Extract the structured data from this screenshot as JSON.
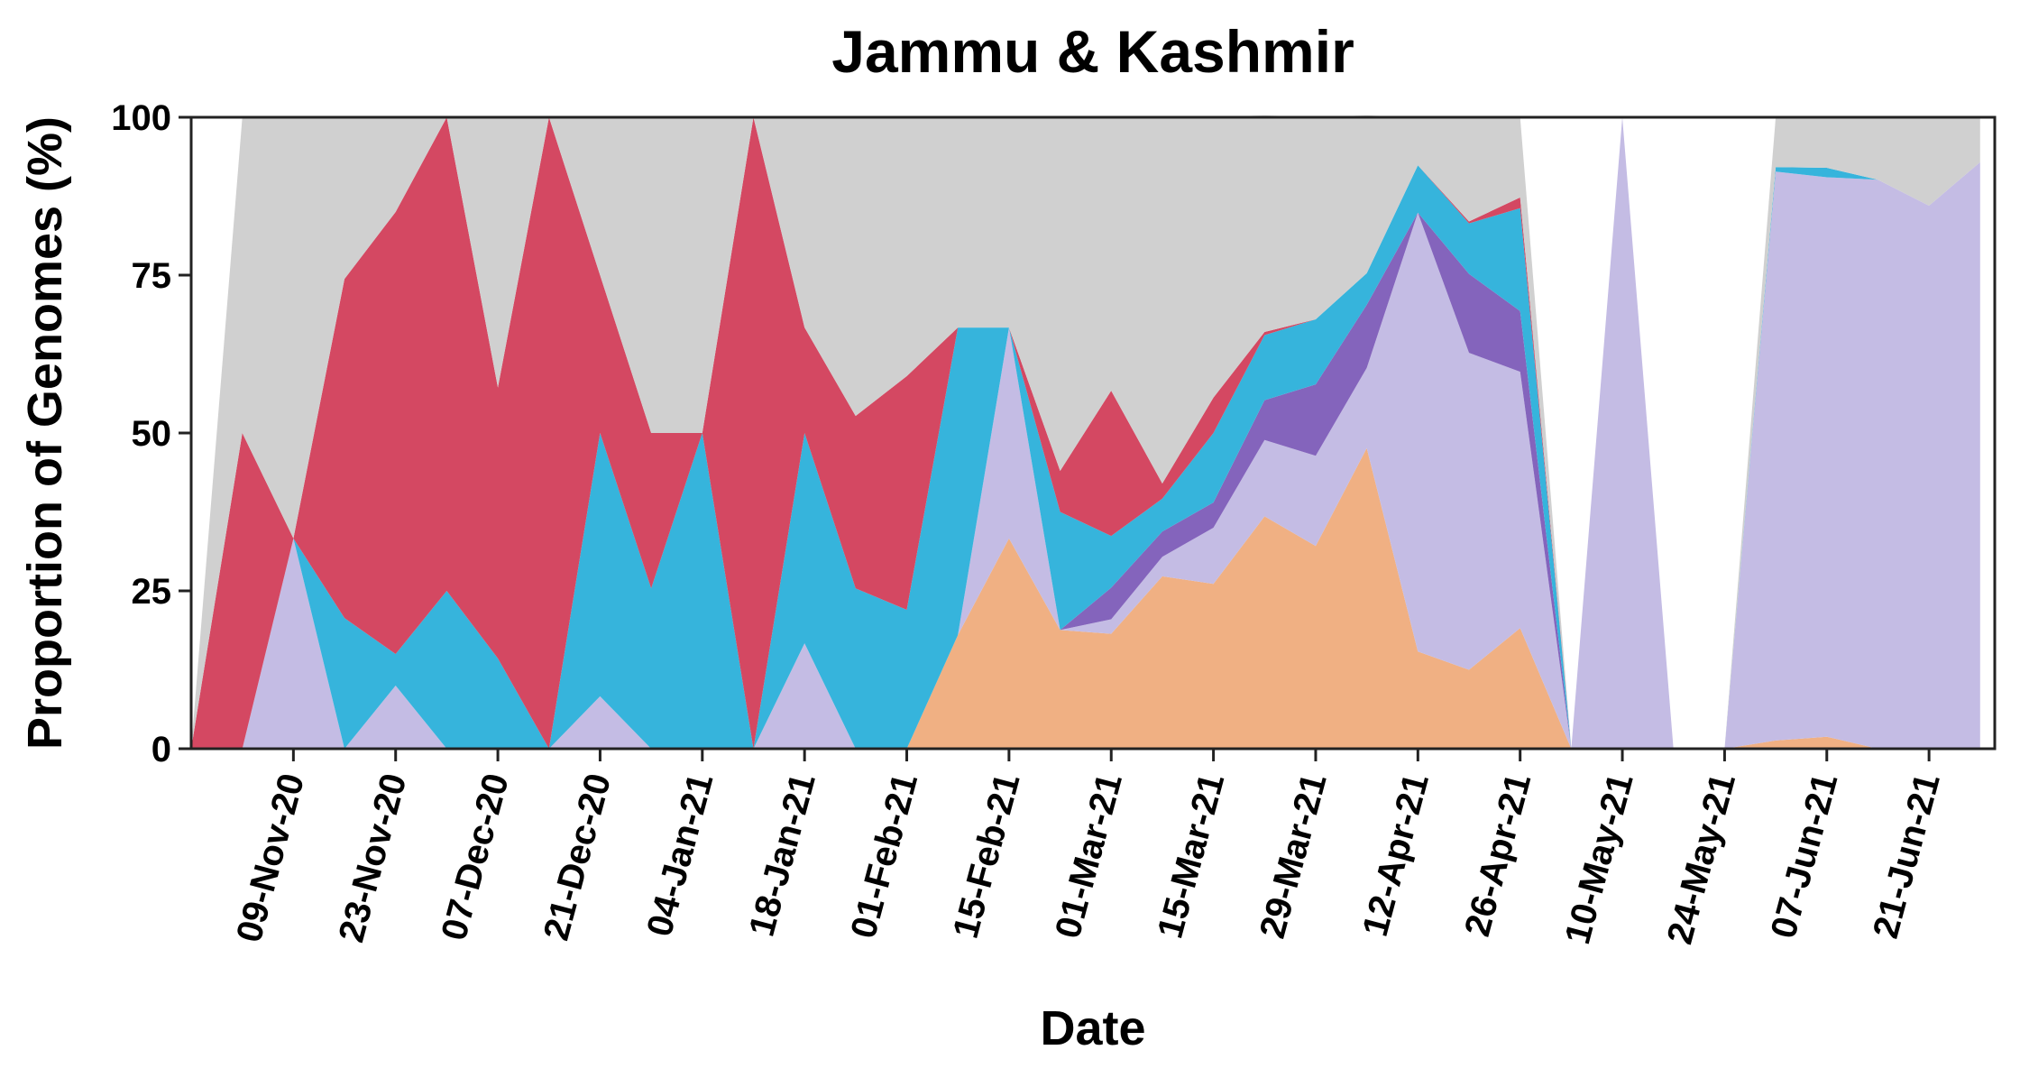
{
  "chart_data": {
    "type": "area",
    "stacked": true,
    "title": "Jammu & Kashmir",
    "xlabel": "Date",
    "ylabel": "Proportion of Genomes (%)",
    "ylim": [
      0,
      100
    ],
    "yticks": [
      0,
      25,
      50,
      75,
      100
    ],
    "xlim": [
      "2020-10-26",
      "2021-06-30"
    ],
    "xticks": [
      "2020-11-09",
      "2020-11-23",
      "2020-12-07",
      "2020-12-21",
      "2021-01-04",
      "2021-01-18",
      "2021-02-01",
      "2021-02-15",
      "2021-03-01",
      "2021-03-15",
      "2021-03-29",
      "2021-04-12",
      "2021-04-26",
      "2021-05-10",
      "2021-05-24",
      "2021-06-07",
      "2021-06-21"
    ],
    "xtick_labels": [
      "09-Nov-20",
      "23-Nov-20",
      "07-Dec-20",
      "21-Dec-20",
      "04-Jan-21",
      "18-Jan-21",
      "01-Feb-21",
      "15-Feb-21",
      "01-Mar-21",
      "15-Mar-21",
      "29-Mar-21",
      "12-Apr-21",
      "26-Apr-21",
      "10-May-21",
      "24-May-21",
      "07-Jun-21",
      "21-Jun-21"
    ],
    "grid": false,
    "legend": "none",
    "x": [
      "2020-10-26",
      "2020-11-02",
      "2020-11-09",
      "2020-11-16",
      "2020-11-23",
      "2020-11-30",
      "2020-12-07",
      "2020-12-14",
      "2020-12-21",
      "2020-12-28",
      "2021-01-04",
      "2021-01-11",
      "2021-01-18",
      "2021-01-25",
      "2021-02-01",
      "2021-02-08",
      "2021-02-15",
      "2021-02-22",
      "2021-03-01",
      "2021-03-08",
      "2021-03-15",
      "2021-03-22",
      "2021-03-29",
      "2021-04-05",
      "2021-04-12",
      "2021-04-19",
      "2021-04-26",
      "2021-05-03",
      "2021-05-10",
      "2021-05-17",
      "2021-05-24",
      "2021-05-31",
      "2021-06-07",
      "2021-06-14",
      "2021-06-21",
      "2021-06-28"
    ],
    "series": [
      {
        "color": "#f0b083",
        "values": [
          0,
          0,
          0,
          0,
          0,
          0,
          0,
          0,
          0,
          0,
          0,
          0,
          0,
          0,
          0,
          18,
          33.3,
          18.8,
          18.2,
          27.3,
          26.1,
          36.8,
          32.1,
          47.6,
          15.4,
          12.5,
          19.1,
          0,
          0,
          0,
          0,
          1.3,
          1.9,
          0,
          0,
          0
        ]
      },
      {
        "color": "#c4bce4",
        "values": [
          0,
          0,
          33.3,
          0,
          10,
          0,
          0,
          0,
          8.3,
          0,
          0,
          0,
          16.7,
          0,
          0,
          0,
          33.4,
          0,
          2.3,
          3.1,
          8.9,
          12.1,
          14.3,
          12.7,
          69.5,
          50.2,
          40.6,
          0,
          100,
          0,
          0,
          90.1,
          88.6,
          90.1,
          86,
          92.9
        ]
      },
      {
        "color": "#8464bc",
        "values": [
          0,
          0,
          0,
          0,
          0,
          0,
          0,
          0,
          0,
          0,
          0,
          0,
          0,
          0,
          0,
          0,
          0,
          0,
          5,
          4,
          4,
          6.3,
          11.3,
          10,
          0,
          12.5,
          9.6,
          0,
          0,
          0,
          0,
          0,
          0,
          0,
          0,
          0
        ]
      },
      {
        "color": "#36b4dc",
        "values": [
          0,
          0,
          0,
          20.7,
          5,
          25,
          14.3,
          0,
          41.7,
          25.4,
          50,
          0,
          33.3,
          25.4,
          22,
          48.7,
          0,
          18.7,
          8.2,
          5.2,
          11,
          10.3,
          10.3,
          5,
          7.5,
          8,
          16.3,
          0,
          0,
          0,
          0,
          0.7,
          1.5,
          0,
          0,
          0
        ]
      },
      {
        "color": "#d44862",
        "values": [
          0,
          50,
          0,
          53.7,
          70,
          75,
          42.9,
          100,
          25,
          24.6,
          0,
          100,
          16.7,
          27.3,
          37,
          0,
          0,
          6.5,
          23,
          2.4,
          5.6,
          0.5,
          0,
          0,
          0,
          0.3,
          1.7,
          0,
          0,
          0,
          0,
          0,
          0,
          0,
          0,
          0
        ]
      },
      {
        "color": "#d0d0d0",
        "values": [
          0,
          50,
          66.7,
          25.6,
          15,
          0,
          42.8,
          0,
          25,
          50,
          50,
          0,
          33.3,
          47.3,
          41,
          33.3,
          33.3,
          56,
          43.3,
          58,
          44.4,
          34.3,
          32,
          25,
          7.6,
          16.5,
          12.7,
          0,
          0,
          0,
          0,
          7.9,
          8,
          9.9,
          14,
          7.1
        ]
      }
    ]
  }
}
